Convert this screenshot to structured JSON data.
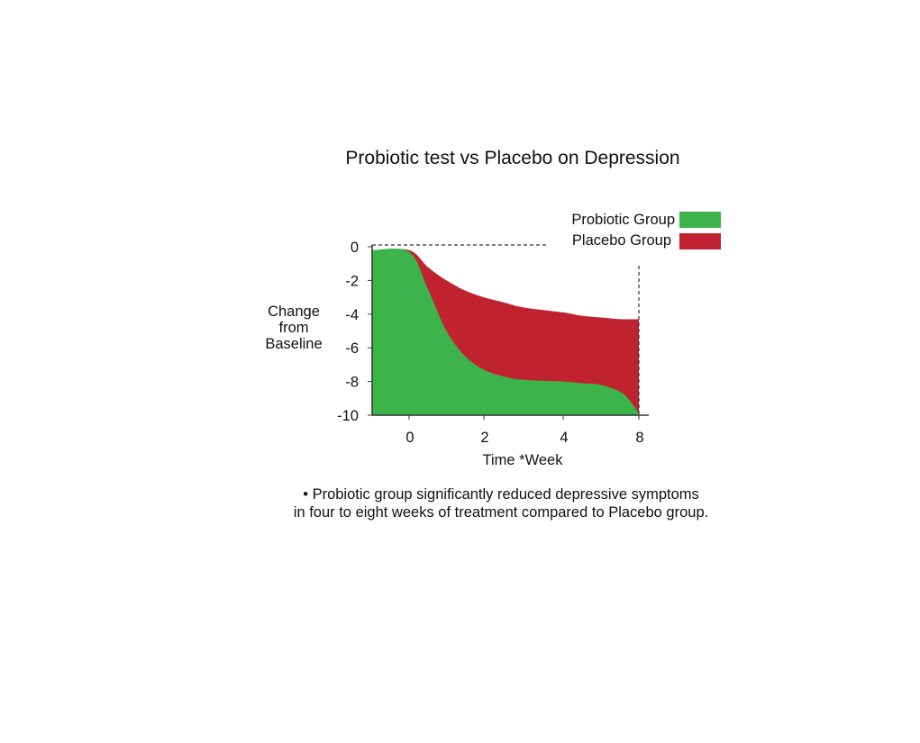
{
  "chart_data": {
    "type": "area",
    "title": "Probiotic test vs Placebo on Depression",
    "xlabel": "Time *Week",
    "ylabel": [
      "Change",
      "from",
      "Baseline"
    ],
    "x_ticks": [
      {
        "label": "0",
        "value": 0
      },
      {
        "label": "2",
        "value": 2
      },
      {
        "label": "4",
        "value": 4
      },
      {
        "label": "8",
        "value": 8
      }
    ],
    "y_ticks": [
      {
        "label": "0",
        "value": 0
      },
      {
        "label": "-2",
        "value": -2
      },
      {
        "label": "-4",
        "value": -4
      },
      {
        "label": "-6",
        "value": -6
      },
      {
        "label": "-8",
        "value": -8
      },
      {
        "label": "-10",
        "value": -10
      }
    ],
    "xlim": [
      -1,
      8
    ],
    "ylim": [
      -10,
      0
    ],
    "series": [
      {
        "name": "Probiotic Group",
        "color": "#3cb44b",
        "x": [
          -1,
          0,
          0.5,
          1,
          1.5,
          2,
          2.5,
          3,
          4,
          5,
          6,
          7,
          7.5,
          8
        ],
        "y": [
          -0.2,
          -0.3,
          -2.5,
          -5.0,
          -6.5,
          -7.3,
          -7.7,
          -7.9,
          -8.0,
          -8.1,
          -8.2,
          -8.6,
          -9.1,
          -9.9
        ]
      },
      {
        "name": "Placebo Group",
        "color": "#c02230",
        "x": [
          -1,
          0,
          0.5,
          1,
          1.5,
          2,
          2.5,
          3,
          4,
          5,
          6,
          7,
          8
        ],
        "y": [
          -0.2,
          -0.2,
          -1.2,
          -2.0,
          -2.6,
          -3.0,
          -3.3,
          -3.6,
          -3.9,
          -4.1,
          -4.2,
          -4.3,
          -4.3
        ]
      }
    ],
    "legend": {
      "position": "top-right",
      "entries": [
        "Probiotic Group",
        "Placebo Group"
      ]
    },
    "caption": [
      "• Probiotic group significantly reduced depressive symptoms",
      "in four to eight weeks of treatment compared to Placebo group."
    ]
  }
}
